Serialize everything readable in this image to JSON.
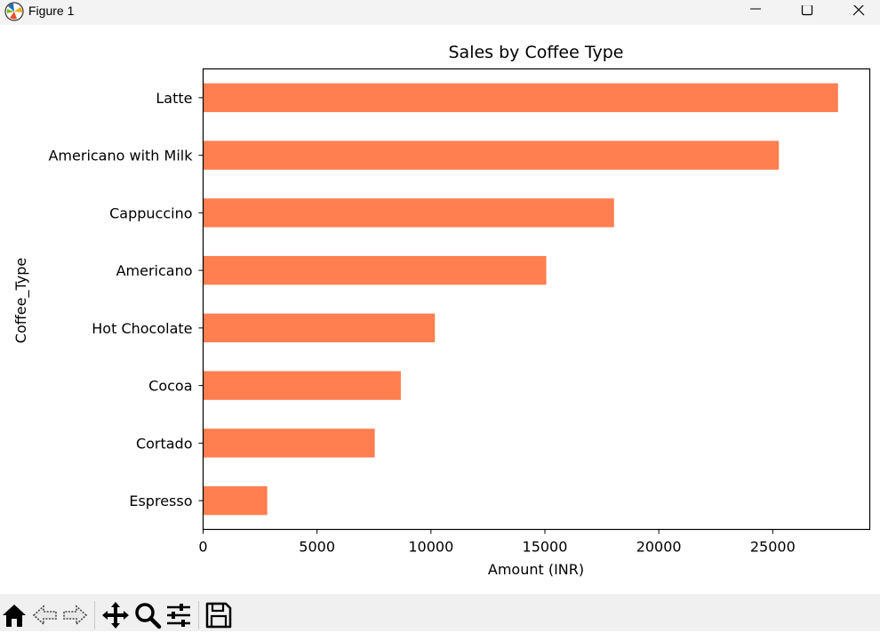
{
  "window": {
    "title": "Figure 1"
  },
  "chart_data": {
    "type": "bar",
    "orientation": "horizontal",
    "title": "Sales by Coffee Type",
    "xlabel": "Amount (INR)",
    "ylabel": "Coffee_Type",
    "categories": [
      "Latte",
      "Americano with Milk",
      "Cappuccino",
      "Americano",
      "Hot Chocolate",
      "Cocoa",
      "Cortado",
      "Espresso"
    ],
    "values": [
      27866,
      25269,
      18035,
      15062,
      10172,
      8678,
      7534,
      2814
    ],
    "xlim": [
      0,
      29260
    ],
    "xticks": [
      0,
      5000,
      10000,
      15000,
      20000,
      25000
    ],
    "xtick_labels": [
      "0",
      "5000",
      "10000",
      "15000",
      "20000",
      "25000"
    ],
    "bar_color": "#ff7f50",
    "grid": false,
    "legend": "none"
  },
  "toolbar": {
    "tools": [
      {
        "name": "home-icon"
      },
      {
        "name": "back-icon"
      },
      {
        "name": "forward-icon"
      },
      {
        "name": "pan-icon"
      },
      {
        "name": "zoom-icon"
      },
      {
        "name": "configure-icon"
      },
      {
        "name": "save-icon"
      }
    ]
  }
}
